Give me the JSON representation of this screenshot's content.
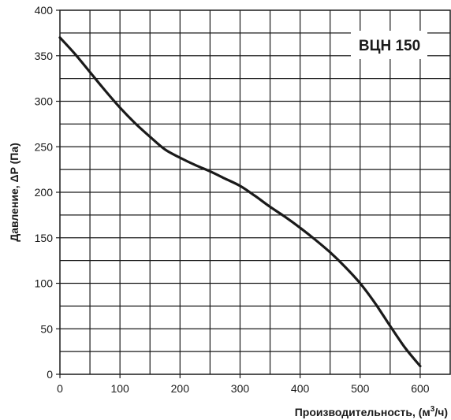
{
  "chart_data": {
    "type": "line",
    "model_label": "ВЦН 150",
    "xlabel": "Производительность, (м",
    "xlabel_sup": "3",
    "xlabel_tail": "/ч)",
    "ylabel": "Давление, ΔP (Па)",
    "xlim": [
      0,
      650
    ],
    "ylim": [
      0,
      400
    ],
    "x_ticks": [
      0,
      100,
      200,
      300,
      400,
      500,
      600
    ],
    "y_ticks": [
      0,
      50,
      100,
      150,
      200,
      250,
      300,
      350,
      400
    ],
    "x_grid_step": 50,
    "y_grid_step": 25,
    "grid": true,
    "line_color": "#1a1a1a",
    "series": [
      {
        "x": [
          0,
          25,
          50,
          75,
          100,
          125,
          150,
          175,
          200,
          225,
          250,
          275,
          300,
          325,
          350,
          375,
          400,
          425,
          450,
          475,
          500,
          525,
          550,
          575,
          600
        ],
        "values": [
          370,
          352,
          332,
          312,
          293,
          276,
          261,
          247,
          238,
          230,
          223,
          215,
          207,
          196,
          184,
          173,
          161,
          148,
          134,
          118,
          100,
          78,
          53,
          29,
          9
        ]
      }
    ]
  }
}
